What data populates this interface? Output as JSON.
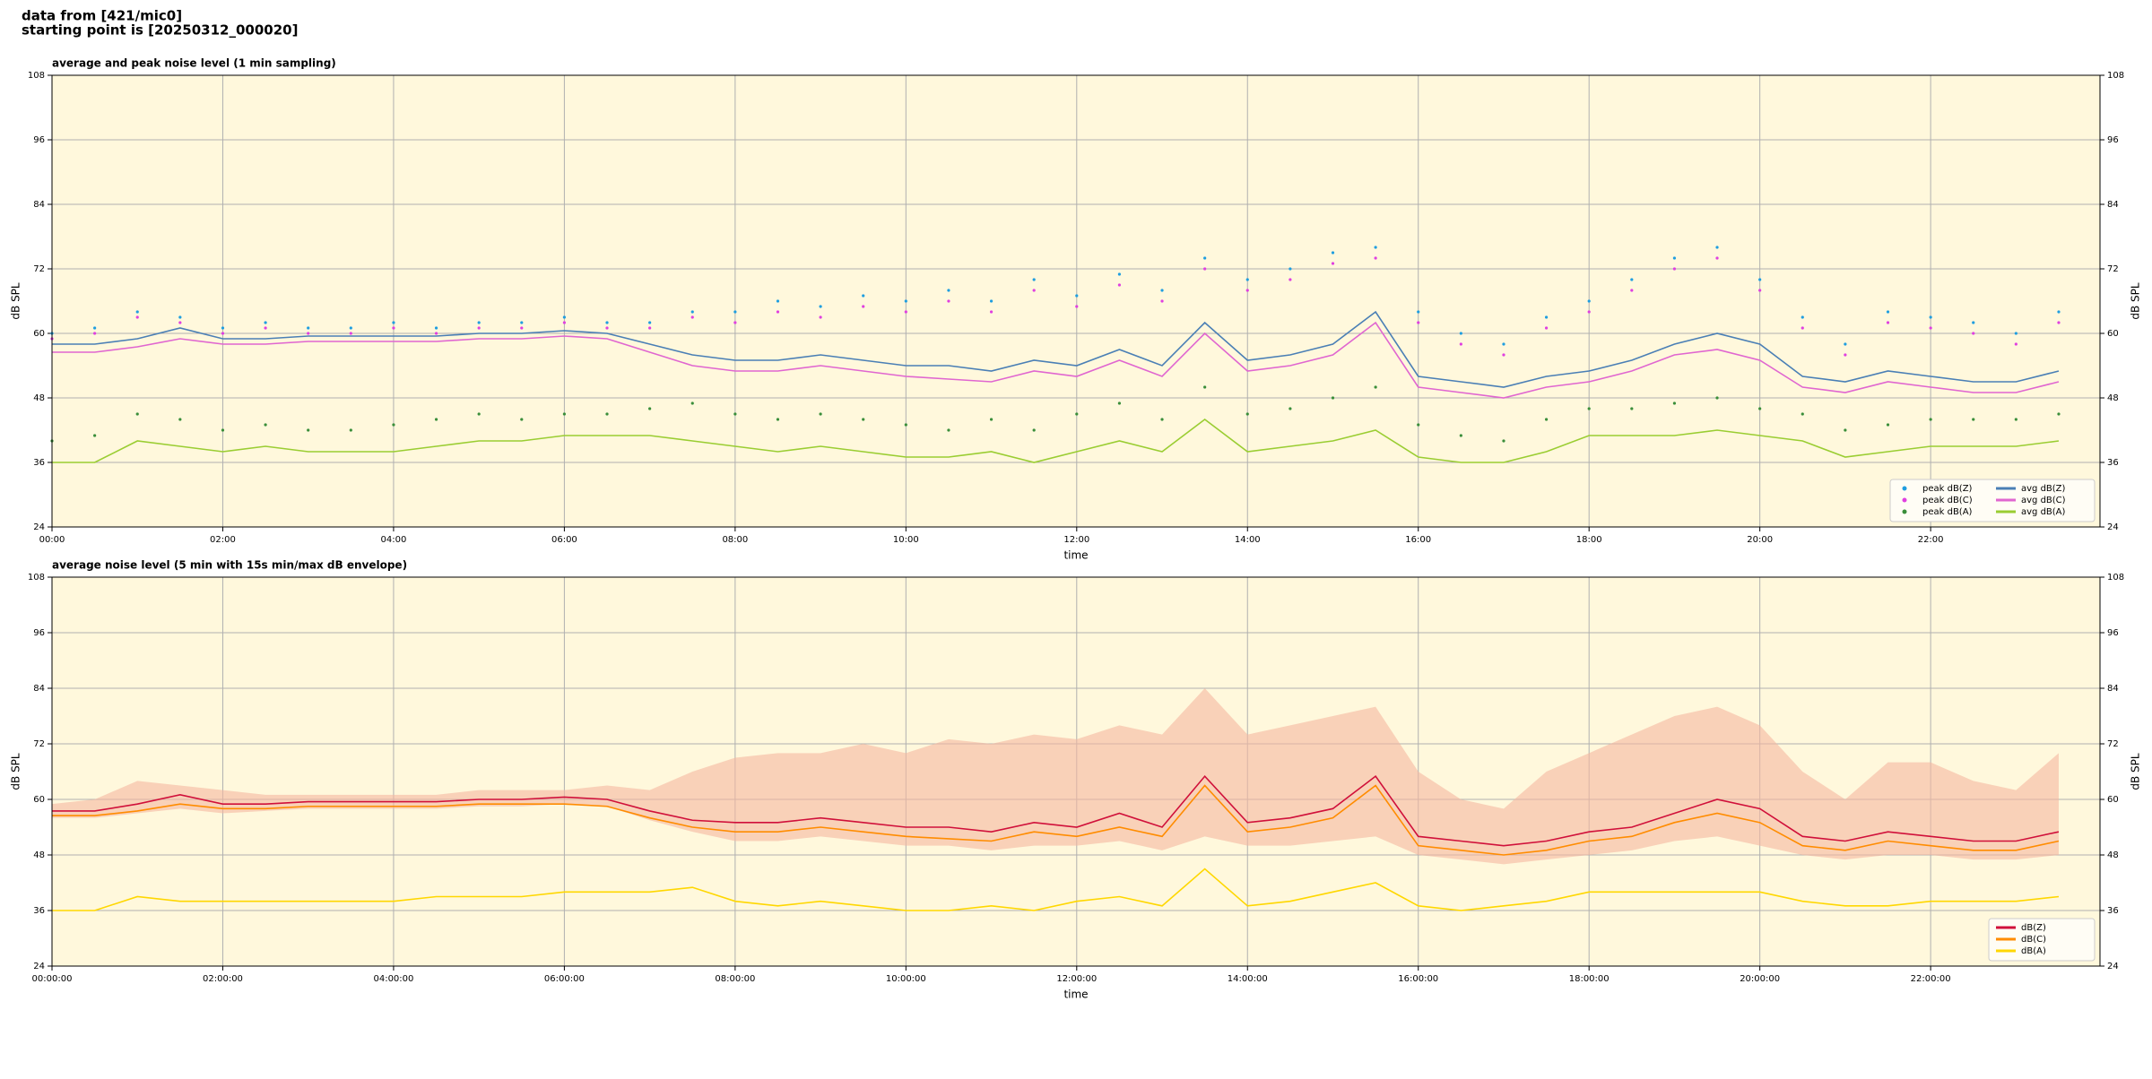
{
  "header": {
    "line1": "data from [421/mic0]",
    "line2": "starting point is [20250312_000020]"
  },
  "chart_data": [
    {
      "type": "line",
      "title": "average and peak noise level (1 min sampling)",
      "xlabel": "time",
      "ylabel": "dB SPL",
      "x": [
        "00:00",
        "00:30",
        "01:00",
        "01:30",
        "02:00",
        "02:30",
        "03:00",
        "03:30",
        "04:00",
        "04:30",
        "05:00",
        "05:30",
        "06:00",
        "06:30",
        "07:00",
        "07:30",
        "08:00",
        "08:30",
        "09:00",
        "09:30",
        "10:00",
        "10:30",
        "11:00",
        "11:30",
        "12:00",
        "12:30",
        "13:00",
        "13:30",
        "14:00",
        "14:30",
        "15:00",
        "15:30",
        "16:00",
        "16:30",
        "17:00",
        "17:30",
        "18:00",
        "18:30",
        "19:00",
        "19:30",
        "20:00",
        "20:30",
        "21:00",
        "21:30",
        "22:00",
        "22:30",
        "23:00",
        "23:30"
      ],
      "xlim": [
        "00:00",
        "23:59"
      ],
      "xticks": [
        "00:00",
        "02:00",
        "04:00",
        "06:00",
        "08:00",
        "10:00",
        "12:00",
        "14:00",
        "16:00",
        "18:00",
        "20:00",
        "22:00"
      ],
      "ylim": [
        24,
        108
      ],
      "yticks": [
        24,
        36,
        48,
        60,
        72,
        84,
        96,
        108
      ],
      "grid": true,
      "legend": "lower right",
      "series": [
        {
          "name": "peak dB(Z)",
          "color": "#1f9ee0",
          "marker": "dot",
          "values": [
            60,
            61,
            64,
            63,
            61,
            62,
            61,
            61,
            62,
            61,
            62,
            62,
            63,
            62,
            62,
            64,
            64,
            66,
            65,
            67,
            66,
            68,
            66,
            70,
            67,
            71,
            68,
            74,
            70,
            72,
            75,
            76,
            64,
            60,
            58,
            63,
            66,
            70,
            74,
            76,
            70,
            63,
            58,
            64,
            63,
            62,
            60,
            64
          ]
        },
        {
          "name": "peak dB(C)",
          "color": "#e040e0",
          "marker": "dot",
          "values": [
            59,
            60,
            63,
            62,
            60,
            61,
            60,
            60,
            61,
            60,
            61,
            61,
            62,
            61,
            61,
            63,
            62,
            64,
            63,
            65,
            64,
            66,
            64,
            68,
            65,
            69,
            66,
            72,
            68,
            70,
            73,
            74,
            62,
            58,
            56,
            61,
            64,
            68,
            72,
            74,
            68,
            61,
            56,
            62,
            61,
            60,
            58,
            62
          ]
        },
        {
          "name": "peak dB(A)",
          "color": "#3a8e3a",
          "marker": "dot",
          "values": [
            40,
            41,
            45,
            44,
            42,
            43,
            42,
            42,
            43,
            44,
            45,
            44,
            45,
            45,
            46,
            47,
            45,
            44,
            45,
            44,
            43,
            42,
            44,
            42,
            45,
            47,
            44,
            50,
            45,
            46,
            48,
            50,
            43,
            41,
            40,
            44,
            46,
            46,
            47,
            48,
            46,
            45,
            42,
            43,
            44,
            44,
            44,
            45
          ]
        },
        {
          "name": "avg dB(Z)",
          "color": "#4a7fb5",
          "marker": "line",
          "values": [
            58,
            58,
            59,
            61,
            59,
            59,
            59.5,
            59.5,
            59.5,
            59.5,
            60,
            60,
            60.5,
            60,
            58,
            56,
            55,
            55,
            56,
            55,
            54,
            54,
            53,
            55,
            54,
            57,
            54,
            62,
            55,
            56,
            58,
            64,
            52,
            51,
            50,
            52,
            53,
            55,
            58,
            60,
            58,
            52,
            51,
            53,
            52,
            51,
            51,
            53
          ]
        },
        {
          "name": "avg dB(C)",
          "color": "#e066d0",
          "marker": "line",
          "values": [
            56.5,
            56.5,
            57.5,
            59,
            58,
            58,
            58.5,
            58.5,
            58.5,
            58.5,
            59,
            59,
            59.5,
            59,
            56.5,
            54,
            53,
            53,
            54,
            53,
            52,
            51.5,
            51,
            53,
            52,
            55,
            52,
            60,
            53,
            54,
            56,
            62,
            50,
            49,
            48,
            50,
            51,
            53,
            56,
            57,
            55,
            50,
            49,
            51,
            50,
            49,
            49,
            51
          ]
        },
        {
          "name": "avg dB(A)",
          "color": "#9acd32",
          "marker": "line",
          "values": [
            36,
            36,
            40,
            39,
            38,
            39,
            38,
            38,
            38,
            39,
            40,
            40,
            41,
            41,
            41,
            40,
            39,
            38,
            39,
            38,
            37,
            37,
            38,
            36,
            38,
            40,
            38,
            44,
            38,
            39,
            40,
            42,
            37,
            36,
            36,
            38,
            41,
            41,
            41,
            42,
            41,
            40,
            37,
            38,
            39,
            39,
            39,
            40
          ]
        }
      ]
    },
    {
      "type": "line",
      "title": "average noise level (5 min with 15s min/max dB envelope)",
      "xlabel": "time",
      "ylabel": "dB SPL",
      "x": [
        "00:00:00",
        "00:30:00",
        "01:00:00",
        "01:30:00",
        "02:00:00",
        "02:30:00",
        "03:00:00",
        "03:30:00",
        "04:00:00",
        "04:30:00",
        "05:00:00",
        "05:30:00",
        "06:00:00",
        "06:30:00",
        "07:00:00",
        "07:30:00",
        "08:00:00",
        "08:30:00",
        "09:00:00",
        "09:30:00",
        "10:00:00",
        "10:30:00",
        "11:00:00",
        "11:30:00",
        "12:00:00",
        "12:30:00",
        "13:00:00",
        "13:30:00",
        "14:00:00",
        "14:30:00",
        "15:00:00",
        "15:30:00",
        "16:00:00",
        "16:30:00",
        "17:00:00",
        "17:30:00",
        "18:00:00",
        "18:30:00",
        "19:00:00",
        "19:30:00",
        "20:00:00",
        "20:30:00",
        "21:00:00",
        "21:30:00",
        "22:00:00",
        "22:30:00",
        "23:00:00",
        "23:30:00"
      ],
      "xlim": [
        "00:00:00",
        "23:59:00"
      ],
      "xticks": [
        "00:00:00",
        "02:00:00",
        "04:00:00",
        "06:00:00",
        "08:00:00",
        "10:00:00",
        "12:00:00",
        "14:00:00",
        "16:00:00",
        "18:00:00",
        "20:00:00",
        "22:00:00"
      ],
      "ylim": [
        24,
        108
      ],
      "yticks": [
        24,
        36,
        48,
        60,
        72,
        84,
        96,
        108
      ],
      "grid": true,
      "legend": "lower right",
      "envelope": {
        "color": "#f5b7a0",
        "min": [
          56,
          56,
          57,
          58,
          57,
          57.5,
          58,
          58,
          58,
          58,
          58.5,
          58.5,
          59,
          58.5,
          55.5,
          53,
          51,
          51,
          52,
          51,
          50,
          50,
          49,
          50,
          50,
          51,
          49,
          52,
          50,
          50,
          51,
          52,
          48,
          47,
          46,
          47,
          48,
          49,
          51,
          52,
          50,
          48,
          47,
          48,
          48,
          47,
          47,
          48
        ],
        "max": [
          59,
          60,
          64,
          63,
          62,
          61,
          61,
          61,
          61,
          61,
          62,
          62,
          62,
          63,
          62,
          66,
          69,
          70,
          70,
          72,
          70,
          73,
          72,
          74,
          73,
          76,
          74,
          84,
          74,
          76,
          78,
          80,
          66,
          60,
          58,
          66,
          70,
          74,
          78,
          80,
          76,
          66,
          60,
          68,
          68,
          64,
          62,
          70
        ]
      },
      "series": [
        {
          "name": "dB(Z)",
          "color": "#d0103a",
          "values": [
            57.5,
            57.5,
            59,
            61,
            59,
            59,
            59.5,
            59.5,
            59.5,
            59.5,
            60,
            60,
            60.5,
            60,
            57.5,
            55.5,
            55,
            55,
            56,
            55,
            54,
            54,
            53,
            55,
            54,
            57,
            54,
            65,
            55,
            56,
            58,
            65,
            52,
            51,
            50,
            51,
            53,
            54,
            57,
            60,
            58,
            52,
            51,
            53,
            52,
            51,
            51,
            53
          ]
        },
        {
          "name": "dB(C)",
          "color": "#ff8c00",
          "values": [
            56.5,
            56.5,
            57.5,
            59,
            58,
            58,
            58.5,
            58.5,
            58.5,
            58.5,
            59,
            59,
            59,
            58.5,
            56,
            54,
            53,
            53,
            54,
            53,
            52,
            51.5,
            51,
            53,
            52,
            54,
            52,
            63,
            53,
            54,
            56,
            63,
            50,
            49,
            48,
            49,
            51,
            52,
            55,
            57,
            55,
            50,
            49,
            51,
            50,
            49,
            49,
            51
          ]
        },
        {
          "name": "dB(A)",
          "color": "#ffd700",
          "values": [
            36,
            36,
            39,
            38,
            38,
            38,
            38,
            38,
            38,
            39,
            39,
            39,
            40,
            40,
            40,
            41,
            38,
            37,
            38,
            37,
            36,
            36,
            37,
            36,
            38,
            39,
            37,
            45,
            37,
            38,
            40,
            42,
            37,
            36,
            37,
            38,
            40,
            40,
            40,
            40,
            40,
            38,
            37,
            37,
            38,
            38,
            38,
            39
          ]
        }
      ]
    }
  ]
}
